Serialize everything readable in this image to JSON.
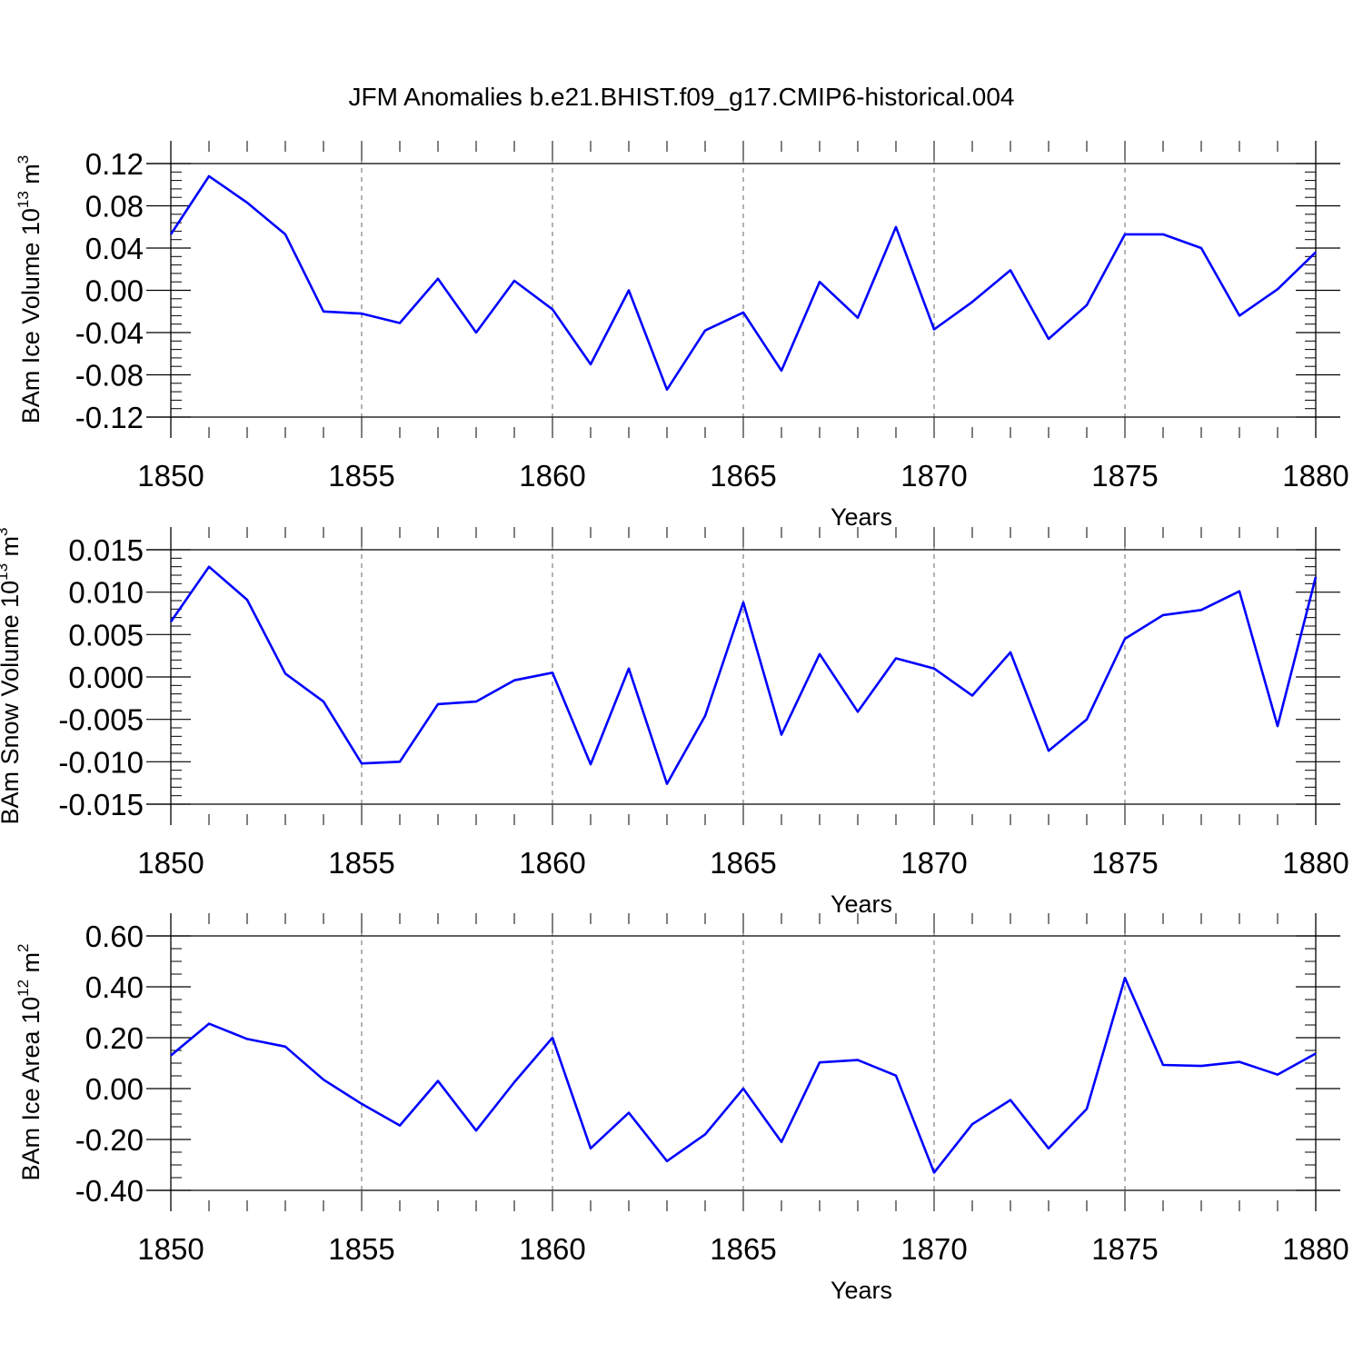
{
  "chart_data": [
    {
      "type": "line",
      "id": "ice-volume",
      "title": "JFM Anomalies b.e21.BHIST.f09_g17.CMIP6-historical.004",
      "ylabel": {
        "base": "BAm Ice Volume 10",
        "exp1": "13",
        "unit": " m",
        "exp2": "3"
      },
      "xlabel": "Years",
      "xlim": [
        1850,
        1880
      ],
      "ylim": [
        -0.12,
        0.12
      ],
      "xticks": [
        1850,
        1855,
        1860,
        1865,
        1870,
        1875,
        1880
      ],
      "xtick_labels": [
        "1850",
        "1855",
        "1860",
        "1865",
        "1870",
        "1875",
        "1880"
      ],
      "yticks": [
        -0.12,
        -0.08,
        -0.04,
        0.0,
        0.04,
        0.08,
        0.12
      ],
      "ytick_labels": [
        "-0.12",
        "-0.08",
        "-0.04",
        "0.00",
        "0.04",
        "0.08",
        "0.12"
      ],
      "yminor_step": 0.008,
      "grid": "vertical dashed at major x ticks",
      "line_color": "#0000ff",
      "x": [
        1850,
        1851,
        1852,
        1853,
        1854,
        1855,
        1856,
        1857,
        1858,
        1859,
        1860,
        1861,
        1862,
        1863,
        1864,
        1865,
        1866,
        1867,
        1868,
        1869,
        1870,
        1871,
        1872,
        1873,
        1874,
        1875,
        1876,
        1877,
        1878,
        1879,
        1880
      ],
      "values": [
        0.053,
        0.108,
        0.083,
        0.053,
        -0.02,
        -0.022,
        -0.031,
        0.011,
        -0.04,
        0.009,
        -0.018,
        -0.07,
        0.0,
        -0.094,
        -0.038,
        -0.021,
        -0.076,
        0.008,
        -0.026,
        0.06,
        -0.037,
        -0.011,
        0.019,
        -0.046,
        -0.014,
        0.053,
        0.053,
        0.04,
        -0.024,
        0.001,
        0.036
      ]
    },
    {
      "type": "line",
      "id": "snow-volume",
      "ylabel": {
        "base": "BAm Snow Volume 10",
        "exp1": "13",
        "unit": " m",
        "exp2": "3"
      },
      "xlabel": "Years",
      "xlim": [
        1850,
        1880
      ],
      "ylim": [
        -0.015,
        0.015
      ],
      "xticks": [
        1850,
        1855,
        1860,
        1865,
        1870,
        1875,
        1880
      ],
      "xtick_labels": [
        "1850",
        "1855",
        "1860",
        "1865",
        "1870",
        "1875",
        "1880"
      ],
      "yticks": [
        -0.015,
        -0.01,
        -0.005,
        0.0,
        0.005,
        0.01,
        0.015
      ],
      "ytick_labels": [
        "-0.015",
        "-0.010",
        "-0.005",
        "0.000",
        "0.005",
        "0.010",
        "0.015"
      ],
      "yminor_step": 0.001,
      "grid": "vertical dashed at major x ticks",
      "line_color": "#0000ff",
      "x": [
        1850,
        1851,
        1852,
        1853,
        1854,
        1855,
        1856,
        1857,
        1858,
        1859,
        1860,
        1861,
        1862,
        1863,
        1864,
        1865,
        1866,
        1867,
        1868,
        1869,
        1870,
        1871,
        1872,
        1873,
        1874,
        1875,
        1876,
        1877,
        1878,
        1879,
        1880
      ],
      "values": [
        0.0065,
        0.013,
        0.0091,
        0.0004,
        -0.0029,
        -0.0102,
        -0.01,
        -0.0032,
        -0.0029,
        -0.0004,
        0.0005,
        -0.0103,
        0.001,
        -0.0126,
        -0.0046,
        0.0088,
        -0.0068,
        0.0027,
        -0.0041,
        0.0022,
        0.001,
        -0.0022,
        0.0029,
        -0.0087,
        -0.005,
        0.0045,
        0.0073,
        0.0079,
        0.0101,
        -0.0058,
        0.0118
      ]
    },
    {
      "type": "line",
      "id": "ice-area",
      "ylabel": {
        "base": "BAm Ice Area 10",
        "exp1": "12",
        "unit": " m",
        "exp2": "2"
      },
      "xlabel": "Years",
      "xlim": [
        1850,
        1880
      ],
      "ylim": [
        -0.4,
        0.6
      ],
      "xticks": [
        1850,
        1855,
        1860,
        1865,
        1870,
        1875,
        1880
      ],
      "xtick_labels": [
        "1850",
        "1855",
        "1860",
        "1865",
        "1870",
        "1875",
        "1880"
      ],
      "yticks": [
        -0.4,
        -0.2,
        0.0,
        0.2,
        0.4,
        0.6
      ],
      "ytick_labels": [
        "-0.40",
        "-0.20",
        "0.00",
        "0.20",
        "0.40",
        "0.60"
      ],
      "yminor_step": 0.05,
      "grid": "vertical dashed at major x ticks",
      "line_color": "#0000ff",
      "x": [
        1850,
        1851,
        1852,
        1853,
        1854,
        1855,
        1856,
        1857,
        1858,
        1859,
        1860,
        1861,
        1862,
        1863,
        1864,
        1865,
        1866,
        1867,
        1868,
        1869,
        1870,
        1871,
        1872,
        1873,
        1874,
        1875,
        1876,
        1877,
        1878,
        1879,
        1880
      ],
      "values": [
        0.13,
        0.255,
        0.195,
        0.165,
        0.035,
        -0.06,
        -0.145,
        0.03,
        -0.165,
        0.025,
        0.2,
        -0.235,
        -0.095,
        -0.285,
        -0.18,
        0.0,
        -0.21,
        0.103,
        0.112,
        0.051,
        -0.33,
        -0.14,
        -0.045,
        -0.235,
        -0.08,
        0.435,
        0.093,
        0.089,
        0.105,
        0.055,
        0.138
      ]
    }
  ]
}
